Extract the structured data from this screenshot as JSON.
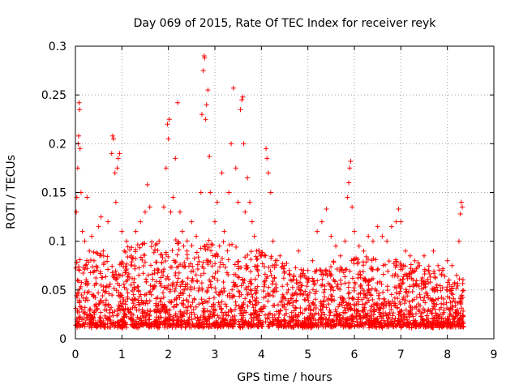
{
  "chart_data": {
    "type": "scatter",
    "title": "Day 069 of 2015, Rate Of TEC Index for receiver reyk",
    "xlabel": "GPS time / hours",
    "ylabel": "ROTI / TECUs",
    "xlim": [
      0,
      9
    ],
    "ylim": [
      0,
      0.3
    ],
    "xticks": [
      0,
      1,
      2,
      3,
      4,
      5,
      6,
      7,
      8,
      9
    ],
    "yticks": [
      0,
      0.05,
      0.1,
      0.15,
      0.2,
      0.25,
      0.3
    ],
    "xtick_labels": [
      "0",
      "1",
      "2",
      "3",
      "4",
      "5",
      "6",
      "7",
      "8",
      "9"
    ],
    "ytick_labels": [
      "0",
      "0.05",
      "0.1",
      "0.15",
      "0.2",
      "0.25",
      "0.3"
    ],
    "grid": true,
    "marker": "+",
    "color": "#ff0000",
    "series": [
      {
        "name": "ROTI",
        "points": [
          [
            0.02,
            0.13
          ],
          [
            0.03,
            0.145
          ],
          [
            0.05,
            0.175
          ],
          [
            0.06,
            0.2
          ],
          [
            0.07,
            0.208
          ],
          [
            0.08,
            0.242
          ],
          [
            0.09,
            0.235
          ],
          [
            0.1,
            0.195
          ],
          [
            0.12,
            0.15
          ],
          [
            0.15,
            0.11
          ],
          [
            0.2,
            0.1
          ],
          [
            0.25,
            0.145
          ],
          [
            0.3,
            0.09
          ],
          [
            0.35,
            0.105
          ],
          [
            0.4,
            0.08
          ],
          [
            0.5,
            0.115
          ],
          [
            0.55,
            0.125
          ],
          [
            0.6,
            0.09
          ],
          [
            0.7,
            0.12
          ],
          [
            0.78,
            0.19
          ],
          [
            0.8,
            0.208
          ],
          [
            0.82,
            0.205
          ],
          [
            0.85,
            0.17
          ],
          [
            0.87,
            0.14
          ],
          [
            0.9,
            0.175
          ],
          [
            0.92,
            0.185
          ],
          [
            0.95,
            0.19
          ],
          [
            1.0,
            0.11
          ],
          [
            1.05,
            0.09
          ],
          [
            1.1,
            0.1
          ],
          [
            1.2,
            0.085
          ],
          [
            1.3,
            0.11
          ],
          [
            1.4,
            0.12
          ],
          [
            1.5,
            0.13
          ],
          [
            1.55,
            0.158
          ],
          [
            1.6,
            0.135
          ],
          [
            1.7,
            0.07
          ],
          [
            1.8,
            0.1
          ],
          [
            1.9,
            0.135
          ],
          [
            1.95,
            0.175
          ],
          [
            1.98,
            0.22
          ],
          [
            2.0,
            0.205
          ],
          [
            2.02,
            0.225
          ],
          [
            2.05,
            0.13
          ],
          [
            2.1,
            0.145
          ],
          [
            2.15,
            0.185
          ],
          [
            2.2,
            0.242
          ],
          [
            2.25,
            0.13
          ],
          [
            2.3,
            0.11
          ],
          [
            2.4,
            0.09
          ],
          [
            2.5,
            0.12
          ],
          [
            2.6,
            0.105
          ],
          [
            2.7,
            0.15
          ],
          [
            2.72,
            0.23
          ],
          [
            2.75,
            0.275
          ],
          [
            2.77,
            0.29
          ],
          [
            2.78,
            0.288
          ],
          [
            2.8,
            0.225
          ],
          [
            2.82,
            0.24
          ],
          [
            2.85,
            0.255
          ],
          [
            2.88,
            0.187
          ],
          [
            2.9,
            0.15
          ],
          [
            3.0,
            0.12
          ],
          [
            3.05,
            0.14
          ],
          [
            3.1,
            0.095
          ],
          [
            3.15,
            0.17
          ],
          [
            3.2,
            0.11
          ],
          [
            3.3,
            0.15
          ],
          [
            3.35,
            0.2
          ],
          [
            3.4,
            0.257
          ],
          [
            3.45,
            0.175
          ],
          [
            3.5,
            0.14
          ],
          [
            3.55,
            0.235
          ],
          [
            3.58,
            0.245
          ],
          [
            3.6,
            0.248
          ],
          [
            3.62,
            0.2
          ],
          [
            3.65,
            0.13
          ],
          [
            3.7,
            0.165
          ],
          [
            3.75,
            0.14
          ],
          [
            3.8,
            0.12
          ],
          [
            3.85,
            0.105
          ],
          [
            3.9,
            0.09
          ],
          [
            4.0,
            0.085
          ],
          [
            4.1,
            0.195
          ],
          [
            4.12,
            0.185
          ],
          [
            4.15,
            0.17
          ],
          [
            4.2,
            0.15
          ],
          [
            4.25,
            0.1
          ],
          [
            4.3,
            0.08
          ],
          [
            4.4,
            0.085
          ],
          [
            4.5,
            0.075
          ],
          [
            4.6,
            0.07
          ],
          [
            4.7,
            0.065
          ],
          [
            4.8,
            0.09
          ],
          [
            4.9,
            0.065
          ],
          [
            5.0,
            0.07
          ],
          [
            5.1,
            0.08
          ],
          [
            5.2,
            0.11
          ],
          [
            5.3,
            0.12
          ],
          [
            5.4,
            0.133
          ],
          [
            5.5,
            0.105
          ],
          [
            5.6,
            0.095
          ],
          [
            5.7,
            0.085
          ],
          [
            5.8,
            0.1
          ],
          [
            5.85,
            0.145
          ],
          [
            5.88,
            0.16
          ],
          [
            5.9,
            0.175
          ],
          [
            5.92,
            0.182
          ],
          [
            5.95,
            0.135
          ],
          [
            6.0,
            0.11
          ],
          [
            6.1,
            0.095
          ],
          [
            6.2,
            0.09
          ],
          [
            6.3,
            0.105
          ],
          [
            6.4,
            0.1
          ],
          [
            6.5,
            0.115
          ],
          [
            6.6,
            0.105
          ],
          [
            6.7,
            0.1
          ],
          [
            6.8,
            0.115
          ],
          [
            6.9,
            0.12
          ],
          [
            6.95,
            0.133
          ],
          [
            7.0,
            0.12
          ],
          [
            7.1,
            0.09
          ],
          [
            7.2,
            0.085
          ],
          [
            7.3,
            0.08
          ],
          [
            7.4,
            0.075
          ],
          [
            7.5,
            0.085
          ],
          [
            7.6,
            0.07
          ],
          [
            7.7,
            0.09
          ],
          [
            7.8,
            0.075
          ],
          [
            7.9,
            0.07
          ],
          [
            8.0,
            0.08
          ],
          [
            8.1,
            0.075
          ],
          [
            8.2,
            0.065
          ],
          [
            8.25,
            0.1
          ],
          [
            8.28,
            0.128
          ],
          [
            8.3,
            0.14
          ],
          [
            8.32,
            0.135
          ]
        ],
        "envelope_hours": [
          0.0,
          0.5,
          1.0,
          1.5,
          2.0,
          2.5,
          3.0,
          3.5,
          4.0,
          4.5,
          5.0,
          5.5,
          6.0,
          6.5,
          7.0,
          7.5,
          8.0,
          8.35
        ],
        "envelope_upper": [
          0.08,
          0.09,
          0.09,
          0.1,
          0.1,
          0.1,
          0.1,
          0.1,
          0.09,
          0.08,
          0.07,
          0.08,
          0.085,
          0.085,
          0.08,
          0.075,
          0.07,
          0.06
        ],
        "envelope_baseline": 0.013
      }
    ]
  }
}
